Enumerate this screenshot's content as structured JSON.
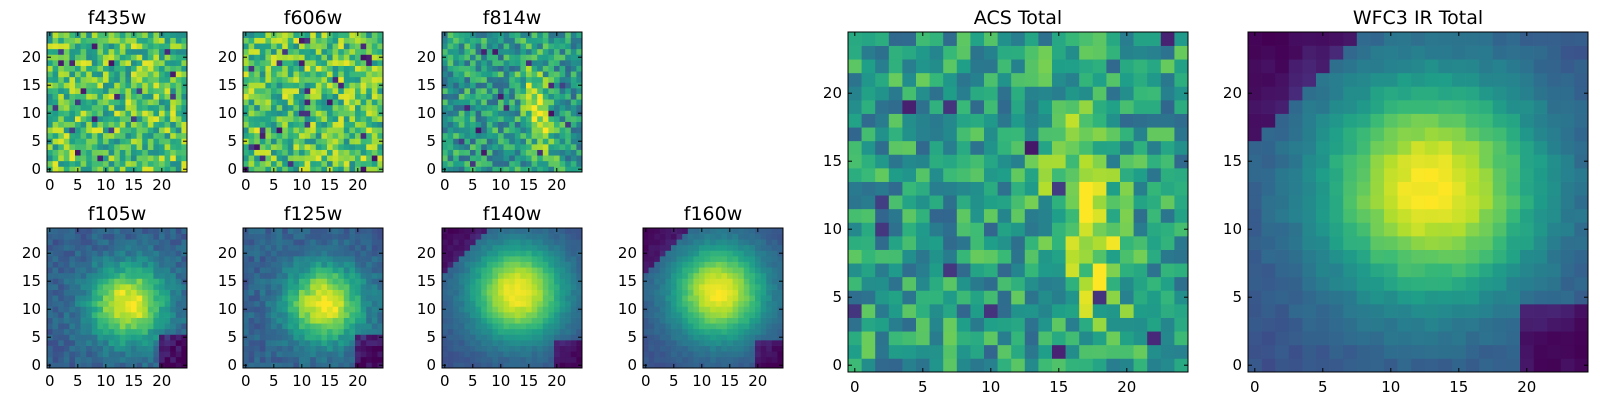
{
  "panels": [
    {
      "title": "f435w",
      "pattern": "noise_high",
      "x_ticks": [
        "0",
        "5",
        "10",
        "15",
        "20"
      ],
      "y_ticks": [
        "0",
        "5",
        "10",
        "15",
        "20"
      ]
    },
    {
      "title": "f606w",
      "pattern": "noise_high",
      "x_ticks": [
        "0",
        "5",
        "10",
        "15",
        "20"
      ],
      "y_ticks": [
        "0",
        "5",
        "10",
        "15",
        "20"
      ]
    },
    {
      "title": "f814w",
      "pattern": "arc_noisy",
      "x_ticks": [
        "0",
        "5",
        "10",
        "15",
        "20"
      ],
      "y_ticks": [
        "0",
        "5",
        "10",
        "15",
        "20"
      ]
    },
    {
      "title": "f105w",
      "pattern": "blob",
      "x_ticks": [
        "0",
        "5",
        "10",
        "15",
        "20"
      ],
      "y_ticks": [
        "0",
        "5",
        "10",
        "15",
        "20"
      ]
    },
    {
      "title": "f125w",
      "pattern": "blob",
      "x_ticks": [
        "0",
        "5",
        "10",
        "15",
        "20"
      ],
      "y_ticks": [
        "0",
        "5",
        "10",
        "15",
        "20"
      ]
    },
    {
      "title": "f140w",
      "pattern": "blob_smooth",
      "x_ticks": [
        "0",
        "5",
        "10",
        "15",
        "20"
      ],
      "y_ticks": [
        "0",
        "5",
        "10",
        "15",
        "20"
      ]
    },
    {
      "title": "f160w",
      "pattern": "blob_smooth",
      "x_ticks": [
        "0",
        "5",
        "10",
        "15",
        "20"
      ],
      "y_ticks": [
        "0",
        "5",
        "10",
        "15",
        "20"
      ]
    },
    {
      "title": "ACS Total",
      "pattern": "arc_noisy",
      "x_ticks": [
        "0",
        "5",
        "10",
        "15",
        "20"
      ],
      "y_ticks": [
        "0",
        "5",
        "10",
        "15",
        "20"
      ]
    },
    {
      "title": "WFC3 IR Total",
      "pattern": "blob_smooth",
      "x_ticks": [
        "0",
        "5",
        "10",
        "15",
        "20"
      ],
      "y_ticks": [
        "0",
        "5",
        "10",
        "15",
        "20"
      ]
    }
  ],
  "chart_data": [
    {
      "type": "heatmap",
      "title": "f435w",
      "grid_size": [
        25,
        25
      ],
      "xlim": [
        -0.5,
        24.5
      ],
      "ylim": [
        -0.5,
        24.5
      ],
      "colormap": "viridis",
      "description_of_values": "mostly uniform noise, bright"
    },
    {
      "type": "heatmap",
      "title": "f606w",
      "grid_size": [
        25,
        25
      ],
      "xlim": [
        -0.5,
        24.5
      ],
      "ylim": [
        -0.5,
        24.5
      ],
      "colormap": "viridis"
    },
    {
      "type": "heatmap",
      "title": "f814w",
      "grid_size": [
        25,
        25
      ],
      "xlim": [
        -0.5,
        24.5
      ],
      "ylim": [
        -0.5,
        24.5
      ],
      "colormap": "viridis"
    },
    {
      "type": "heatmap",
      "title": "f105w",
      "grid_size": [
        25,
        25
      ],
      "xlim": [
        -0.5,
        24.5
      ],
      "ylim": [
        -0.5,
        24.5
      ],
      "colormap": "viridis"
    },
    {
      "type": "heatmap",
      "title": "f125w",
      "grid_size": [
        25,
        25
      ],
      "xlim": [
        -0.5,
        24.5
      ],
      "ylim": [
        -0.5,
        24.5
      ],
      "colormap": "viridis"
    },
    {
      "type": "heatmap",
      "title": "f140w",
      "grid_size": [
        25,
        25
      ],
      "xlim": [
        -0.5,
        24.5
      ],
      "ylim": [
        -0.5,
        24.5
      ],
      "colormap": "viridis"
    },
    {
      "type": "heatmap",
      "title": "f160w",
      "grid_size": [
        25,
        25
      ],
      "xlim": [
        -0.5,
        24.5
      ],
      "ylim": [
        -0.5,
        24.5
      ],
      "colormap": "viridis"
    },
    {
      "type": "heatmap",
      "title": "ACS Total",
      "grid_size": [
        25,
        25
      ],
      "xlim": [
        -0.5,
        24.5
      ],
      "ylim": [
        -0.5,
        24.5
      ],
      "colormap": "viridis"
    },
    {
      "type": "heatmap",
      "title": "WFC3 IR Total",
      "grid_size": [
        25,
        25
      ],
      "xlim": [
        -0.5,
        24.5
      ],
      "ylim": [
        -0.5,
        24.5
      ],
      "colormap": "viridis"
    }
  ]
}
